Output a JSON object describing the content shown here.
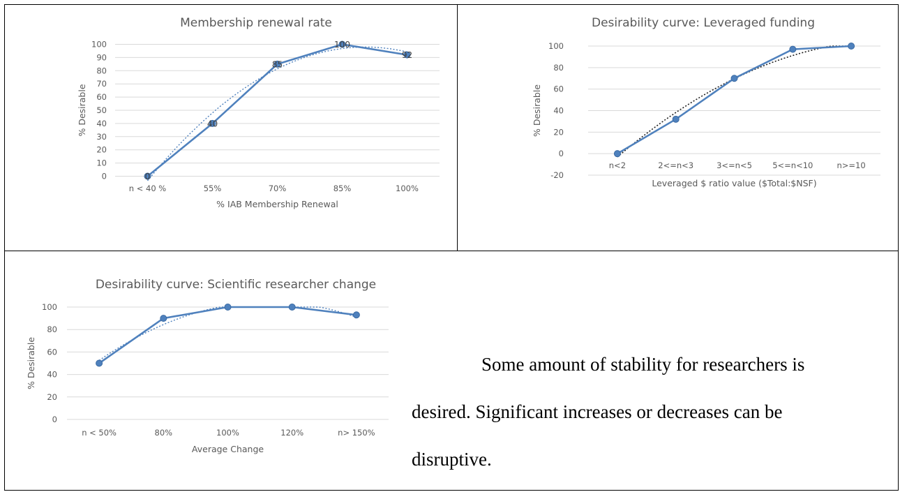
{
  "chart_data": [
    {
      "type": "line",
      "title": "Membership renewal rate",
      "xlabel": "% IAB Membership Renewal",
      "ylabel": "% Desirable",
      "categories": [
        "n < 40 %",
        "55%",
        "70%",
        "85%",
        "100%"
      ],
      "series": [
        {
          "values": [
            0,
            40,
            85,
            100,
            92
          ]
        }
      ],
      "data_labels": [
        "0",
        "40",
        "85",
        "100",
        "92"
      ],
      "yticks": [
        0,
        10,
        20,
        30,
        40,
        50,
        60,
        70,
        80,
        90,
        100
      ],
      "ylim": [
        0,
        100
      ],
      "trendline": "polynomial",
      "grid": true,
      "color": "#4f81bd"
    },
    {
      "type": "line",
      "title": "Desirability curve: Leveraged funding",
      "xlabel": "Leveraged $ ratio value ($Total:$NSF)",
      "ylabel": "% Desirable",
      "categories": [
        "n<2",
        "2<=n<3",
        "3<=n<5",
        "5<=n<10",
        "n>=10"
      ],
      "series": [
        {
          "values": [
            0,
            32,
            70,
            97,
            100
          ]
        }
      ],
      "yticks": [
        -20,
        0,
        20,
        40,
        60,
        80,
        100
      ],
      "ylim": [
        -20,
        100
      ],
      "trendline": "polynomial",
      "grid": true,
      "color": "#4f81bd"
    },
    {
      "type": "line",
      "title": "Desirability curve: Scientific researcher change",
      "xlabel": "Average Change",
      "ylabel": "% Desirable",
      "categories": [
        "n < 50%",
        "80%",
        "100%",
        "120%",
        "n> 150%"
      ],
      "series": [
        {
          "values": [
            50,
            90,
            100,
            100,
            93
          ]
        }
      ],
      "yticks": [
        0,
        20,
        40,
        60,
        80,
        100
      ],
      "ylim": [
        0,
        100
      ],
      "trendline": "polynomial",
      "grid": true,
      "color": "#4f81bd"
    }
  ],
  "note": {
    "text": "Some amount of stability for researchers is desired. Significant increases or decreases can be disruptive."
  }
}
